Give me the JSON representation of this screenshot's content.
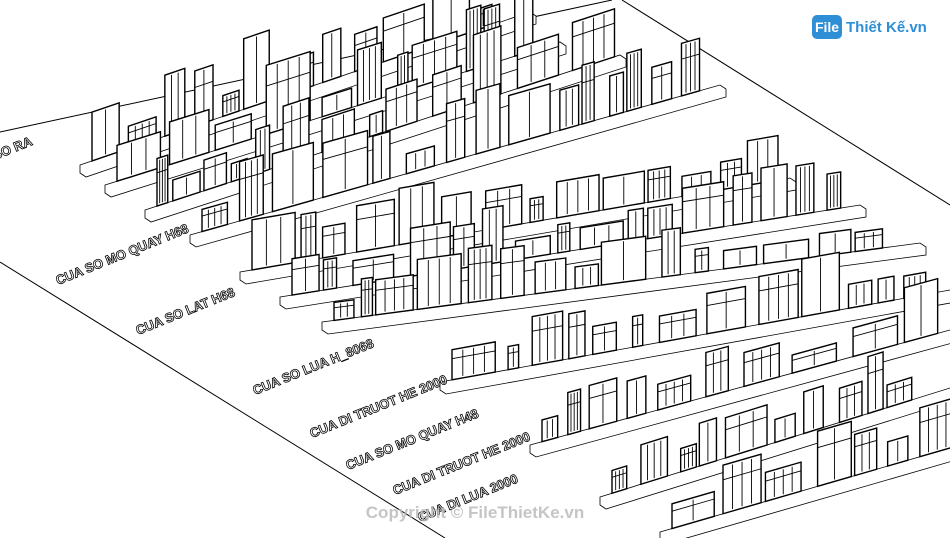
{
  "logo": {
    "mark": "File",
    "text": "Thiết Kế.vn"
  },
  "labels": [
    "SO RA",
    "CUA SO MO QUAY H68",
    "CUA SO LAT H68",
    "CUA SO LUA H_8068",
    "CUA DI TRUOT HE 2000",
    "CUA SO MO QUAY H48",
    "CUA DI TRUOT HE 2000",
    "CUA DI LUA 2000"
  ],
  "watermark": "Copyright © FileThietKe.vn"
}
